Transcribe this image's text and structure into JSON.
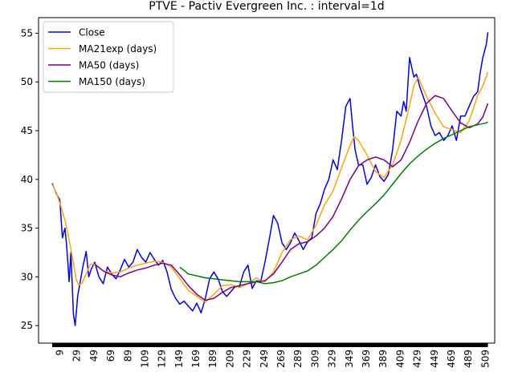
{
  "chart_data": {
    "type": "line",
    "title": "PTVE - Pactiv Evergreen Inc. : interval=1d",
    "xlabel": "",
    "ylabel": "",
    "xlim": [
      -16,
      520
    ],
    "ylim": [
      23.2,
      56.6
    ],
    "x_tick_labels": [
      "9",
      "29",
      "49",
      "69",
      "89",
      "109",
      "129",
      "149",
      "169",
      "189",
      "209",
      "229",
      "249",
      "269",
      "289",
      "309",
      "329",
      "349",
      "369",
      "389",
      "409",
      "429",
      "449",
      "469",
      "489",
      "509"
    ],
    "y_ticks": [
      25,
      30,
      35,
      40,
      45,
      50,
      55
    ],
    "grid": false,
    "legend_position": "top-left",
    "series": [
      {
        "name": "Close",
        "color": "#0000ff",
        "x": [
          0,
          5,
          9,
          12,
          15,
          17,
          20,
          22,
          25,
          27,
          30,
          33,
          36,
          40,
          43,
          46,
          50,
          55,
          60,
          65,
          70,
          75,
          80,
          85,
          90,
          95,
          100,
          105,
          110,
          115,
          120,
          125,
          130,
          135,
          140,
          145,
          150,
          155,
          160,
          165,
          170,
          175,
          180,
          185,
          190,
          195,
          200,
          205,
          210,
          215,
          220,
          225,
          230,
          235,
          240,
          245,
          250,
          255,
          260,
          265,
          270,
          275,
          280,
          285,
          290,
          295,
          300,
          305,
          310,
          315,
          320,
          325,
          330,
          335,
          340,
          345,
          350,
          353,
          356,
          360,
          365,
          370,
          375,
          380,
          385,
          390,
          395,
          400,
          405,
          410,
          413,
          416,
          420,
          425,
          428,
          432,
          436,
          440,
          445,
          450,
          455,
          460,
          465,
          470,
          475,
          480,
          485,
          490,
          495,
          500,
          503,
          506,
          510,
          512
        ],
        "y": [
          39.6,
          38.5,
          37.9,
          34.0,
          35.0,
          33.2,
          29.5,
          32.5,
          26.2,
          25.0,
          28.0,
          29.5,
          31.0,
          32.6,
          30.0,
          30.8,
          31.5,
          30.0,
          29.3,
          31.0,
          30.3,
          29.8,
          30.7,
          31.8,
          31.0,
          31.5,
          32.8,
          32.0,
          31.5,
          32.5,
          31.8,
          31.2,
          31.7,
          30.5,
          28.7,
          27.8,
          27.2,
          27.5,
          27.0,
          26.5,
          27.3,
          26.3,
          27.8,
          29.8,
          30.5,
          29.8,
          28.5,
          28.0,
          28.5,
          29.0,
          29.0,
          30.5,
          31.2,
          28.8,
          29.6,
          29.5,
          31.5,
          33.8,
          36.3,
          35.5,
          33.5,
          32.8,
          33.5,
          34.5,
          33.7,
          32.8,
          33.6,
          34.0,
          36.5,
          37.5,
          39.0,
          40.0,
          42.0,
          41.0,
          44.0,
          47.5,
          48.3,
          45.5,
          43.0,
          41.5,
          41.5,
          39.5,
          40.2,
          41.5,
          40.3,
          39.8,
          40.5,
          43.0,
          47.0,
          46.5,
          48.0,
          47.0,
          52.5,
          50.5,
          50.8,
          49.5,
          48.5,
          47.5,
          45.5,
          44.5,
          44.8,
          44.0,
          44.5,
          45.5,
          44.0,
          46.5,
          46.5,
          47.5,
          48.5,
          49.0,
          51.0,
          52.5,
          53.8,
          55.1
        ]
      },
      {
        "name": "MA21exp (days)",
        "color": "#ffa500",
        "x": [
          0,
          5,
          10,
          15,
          20,
          25,
          28,
          31,
          35,
          40,
          45,
          50,
          60,
          70,
          80,
          90,
          100,
          110,
          120,
          130,
          140,
          150,
          160,
          170,
          180,
          190,
          200,
          210,
          220,
          230,
          240,
          245,
          250,
          260,
          270,
          280,
          290,
          300,
          310,
          320,
          330,
          340,
          350,
          355,
          360,
          370,
          380,
          390,
          400,
          410,
          420,
          425,
          430,
          440,
          450,
          460,
          470,
          480,
          490,
          500,
          506,
          512
        ],
        "y": [
          39.5,
          38.6,
          37.3,
          35.8,
          33.8,
          31.5,
          29.8,
          29.2,
          29.3,
          30.3,
          31.3,
          31.3,
          30.6,
          30.4,
          30.5,
          30.9,
          31.2,
          31.4,
          31.6,
          31.5,
          31.0,
          29.8,
          28.6,
          28.0,
          27.4,
          28.2,
          29.1,
          29.2,
          28.9,
          29.3,
          29.9,
          29.6,
          29.5,
          30.5,
          32.5,
          33.8,
          34.2,
          33.8,
          35.3,
          37.4,
          38.8,
          41.2,
          43.5,
          44.4,
          44.0,
          42.5,
          40.8,
          40.2,
          41.5,
          44.0,
          47.6,
          49.6,
          50.5,
          48.5,
          46.8,
          45.4,
          45.1,
          44.8,
          46.0,
          48.6,
          49.6,
          51.0
        ]
      },
      {
        "name": "MA50 (days)",
        "color": "#800080",
        "x": [
          50,
          60,
          70,
          80,
          90,
          100,
          110,
          120,
          130,
          140,
          150,
          160,
          170,
          180,
          190,
          200,
          210,
          220,
          230,
          240,
          250,
          260,
          270,
          280,
          290,
          300,
          310,
          320,
          330,
          340,
          350,
          360,
          370,
          380,
          390,
          400,
          410,
          420,
          430,
          440,
          450,
          460,
          470,
          480,
          490,
          500,
          506,
          512
        ],
        "y": [
          31.3,
          30.6,
          30.2,
          30.0,
          30.4,
          30.7,
          30.9,
          31.2,
          31.4,
          31.2,
          30.2,
          29.1,
          28.2,
          27.6,
          27.8,
          28.4,
          28.9,
          29.1,
          29.3,
          29.5,
          29.6,
          30.3,
          31.5,
          32.8,
          33.4,
          33.6,
          34.2,
          35.0,
          36.2,
          38.0,
          40.0,
          41.4,
          42.0,
          42.3,
          42.0,
          41.3,
          42.0,
          43.8,
          46.0,
          47.8,
          48.6,
          48.3,
          47.0,
          45.8,
          45.3,
          45.7,
          46.4,
          47.8
        ]
      },
      {
        "name": "MA150 (days)",
        "color": "#008000",
        "x": [
          150,
          160,
          170,
          180,
          190,
          200,
          210,
          220,
          230,
          240,
          250,
          260,
          270,
          280,
          290,
          300,
          310,
          320,
          330,
          340,
          350,
          360,
          370,
          380,
          390,
          400,
          410,
          420,
          430,
          440,
          450,
          460,
          470,
          480,
          490,
          500,
          510,
          512
        ],
        "y": [
          31.0,
          30.3,
          30.1,
          29.9,
          29.8,
          29.7,
          29.6,
          29.5,
          29.5,
          29.5,
          29.3,
          29.4,
          29.6,
          30.0,
          30.3,
          30.6,
          31.2,
          32.0,
          32.8,
          33.7,
          34.8,
          35.8,
          36.7,
          37.5,
          38.4,
          39.5,
          40.6,
          41.6,
          42.4,
          43.1,
          43.7,
          44.2,
          44.6,
          45.0,
          45.4,
          45.6,
          45.8,
          45.9
        ]
      }
    ]
  }
}
